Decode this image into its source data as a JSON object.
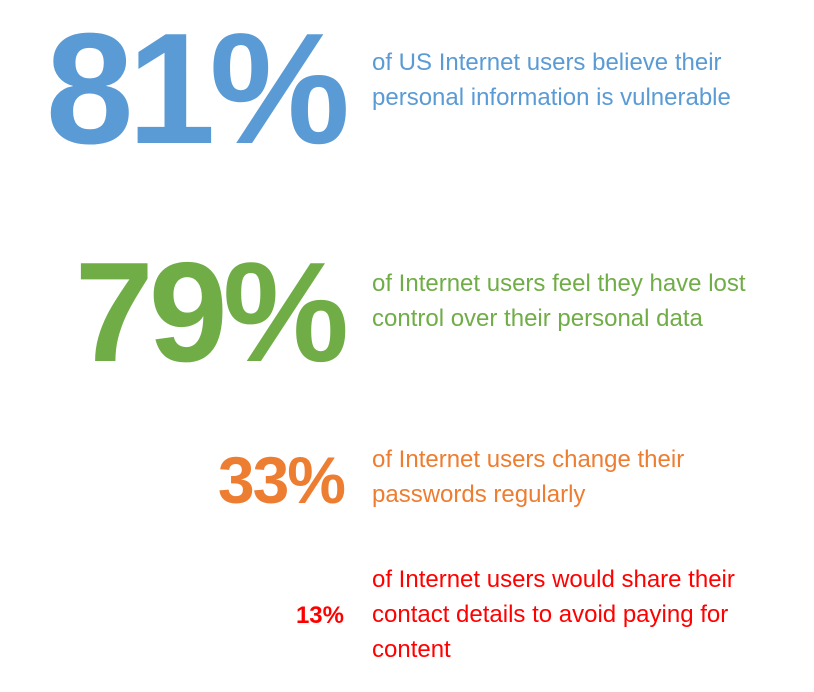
{
  "stats": [
    {
      "value": "81%",
      "text": "of US Internet users believe their personal information is vulnerable",
      "color": "#5b9bd5"
    },
    {
      "value": "79%",
      "text": "of Internet users feel they have lost control over their personal data",
      "color": "#70ad47"
    },
    {
      "value": "33%",
      "text": "of Internet users change their passwords regularly",
      "color": "#ed7d31"
    },
    {
      "value": "13%",
      "text": "of Internet users would share their contact details to avoid paying for content",
      "color": "#ff0000"
    }
  ]
}
